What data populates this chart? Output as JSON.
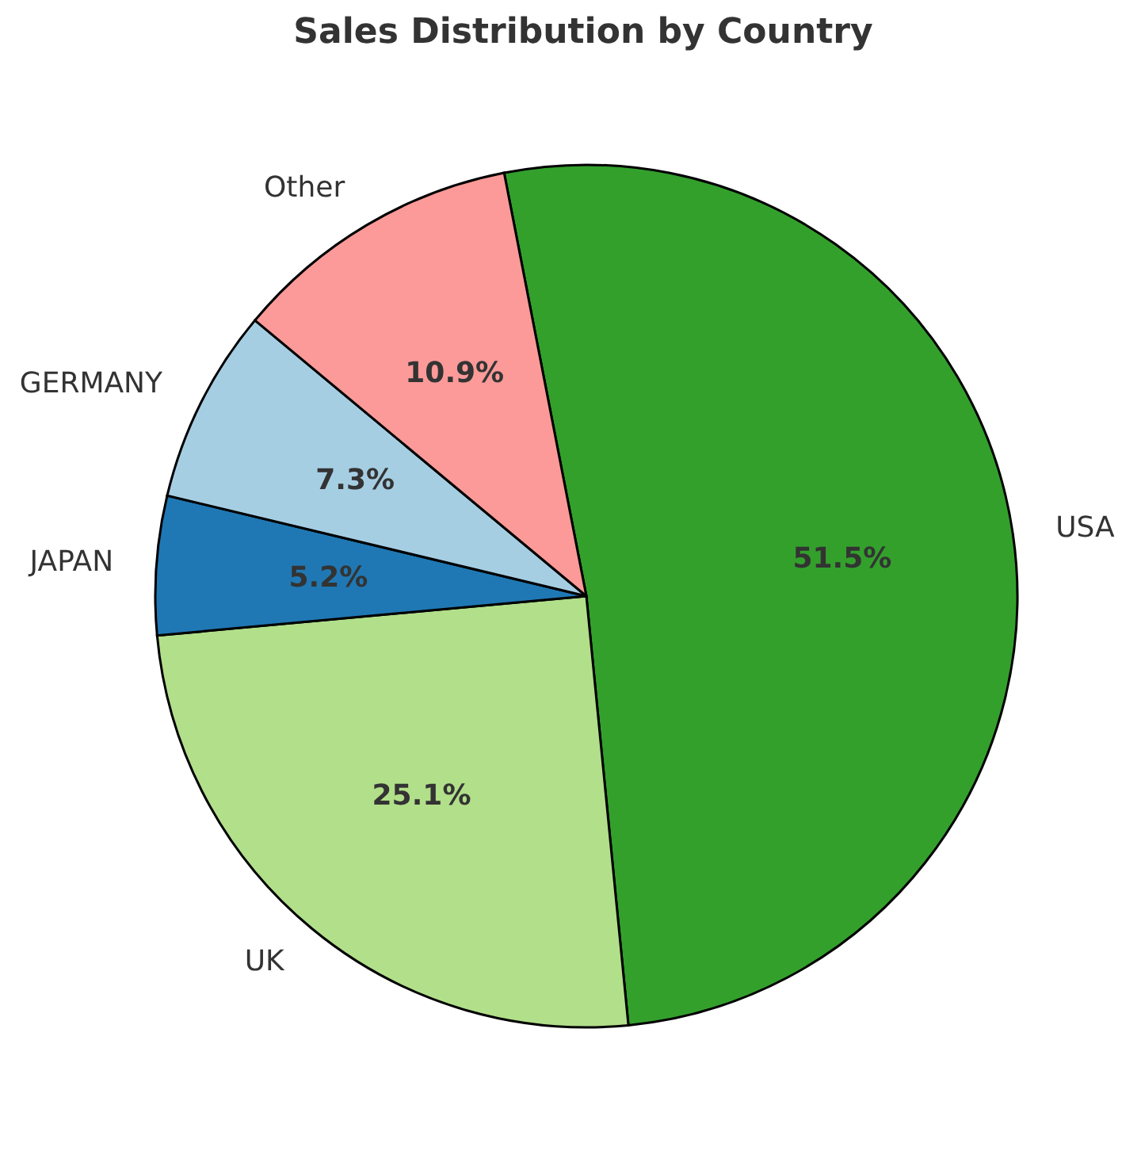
{
  "chart_data": {
    "type": "pie",
    "title": "Sales Distribution by Country",
    "categories": [
      "USA",
      "UK",
      "JAPAN",
      "GERMANY",
      "Other"
    ],
    "values": [
      51.5,
      25.1,
      5.2,
      7.3,
      10.9
    ],
    "colors": [
      "#33a02c",
      "#b2df8a",
      "#1f78b4",
      "#a6cee3",
      "#fb9a99"
    ],
    "value_labels": [
      "51.5%",
      "25.1%",
      "5.2%",
      "7.3%",
      "10.9%"
    ]
  }
}
